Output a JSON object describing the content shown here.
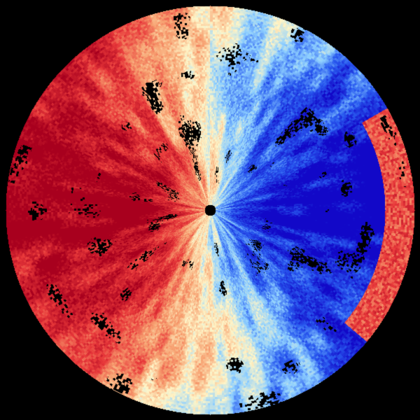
{
  "display": {
    "type": "radar-velocity-ppi",
    "background_color": "#000000",
    "colormap": [
      "#1208c8",
      "#2a5cf0",
      "#8fd0ff",
      "#fff6c8",
      "#f7a070",
      "#e8383a",
      "#a8001e"
    ],
    "no_data_color": "#000000",
    "radar_site_marker_color": "#000000"
  }
}
